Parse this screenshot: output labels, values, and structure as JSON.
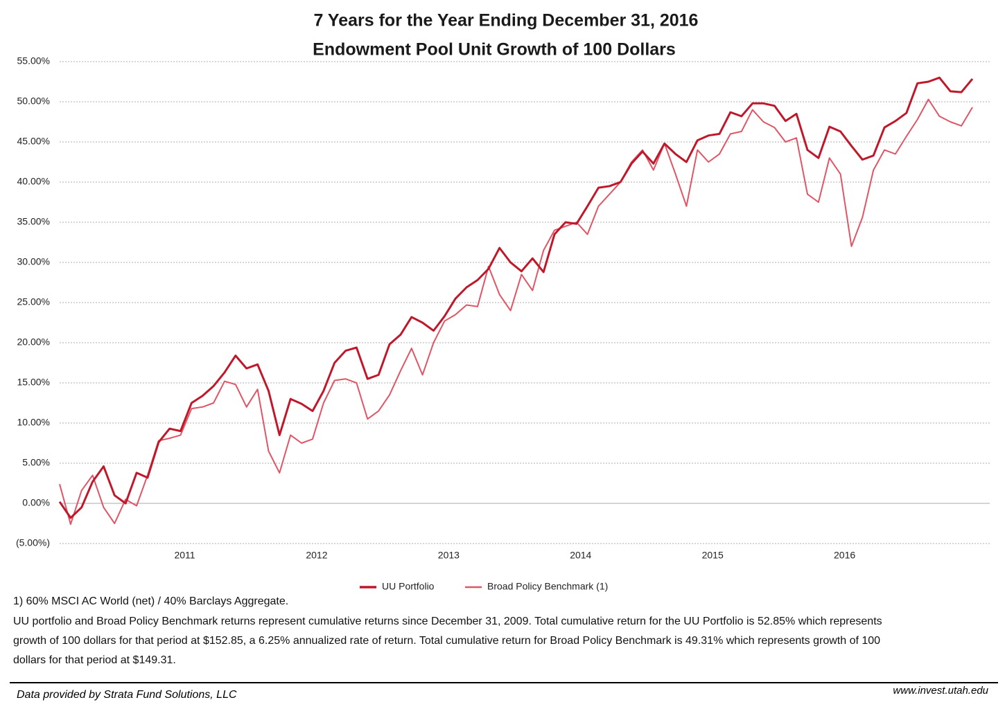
{
  "chart_data": {
    "type": "line",
    "title": "7 Years for the Year Ending December 31, 2016",
    "subtitle": "Endowment Pool Unit Growth of 100 Dollars",
    "categories": [
      null,
      null,
      null,
      null,
      null,
      null,
      null,
      null,
      null,
      null,
      null,
      "2011",
      null,
      null,
      null,
      null,
      null,
      null,
      null,
      null,
      null,
      null,
      null,
      "2012",
      null,
      null,
      null,
      null,
      null,
      null,
      null,
      null,
      null,
      null,
      null,
      "2013",
      null,
      null,
      null,
      null,
      null,
      null,
      null,
      null,
      null,
      null,
      null,
      "2014",
      null,
      null,
      null,
      null,
      null,
      null,
      null,
      null,
      null,
      null,
      null,
      "2015",
      null,
      null,
      null,
      null,
      null,
      null,
      null,
      null,
      null,
      null,
      null,
      "2016",
      null,
      null,
      null,
      null,
      null,
      null,
      null,
      null,
      null,
      null,
      null,
      null
    ],
    "series": [
      {
        "name": "UU Portfolio",
        "color": "#c0182b",
        "values": [
          0.2,
          -1.8,
          -0.5,
          2.7,
          4.6,
          1.0,
          0.0,
          3.8,
          3.2,
          7.6,
          9.3,
          9.0,
          12.5,
          13.4,
          14.6,
          16.3,
          18.4,
          16.8,
          17.3,
          14.0,
          8.5,
          13.0,
          12.4,
          11.5,
          14.0,
          17.5,
          19.0,
          19.4,
          15.5,
          16.0,
          19.8,
          21.0,
          23.2,
          22.5,
          21.5,
          23.3,
          25.5,
          26.9,
          27.8,
          29.2,
          31.8,
          30.0,
          28.9,
          30.5,
          28.8,
          33.5,
          35.0,
          34.8,
          37.0,
          39.3,
          39.5,
          40.0,
          42.3,
          43.8,
          42.3,
          44.8,
          43.5,
          42.5,
          45.2,
          45.8,
          46.0,
          48.7,
          48.2,
          49.8,
          49.8,
          49.5,
          47.6,
          48.5,
          44.0,
          43.0,
          46.9,
          46.3,
          44.5,
          42.8,
          43.3,
          46.8,
          47.6,
          48.6,
          52.3,
          52.5,
          53.0,
          51.3,
          51.2,
          52.85
        ]
      },
      {
        "name": "Broad Policy Benchmark (1)",
        "color": "#e05565",
        "values": [
          2.4,
          -2.6,
          1.6,
          3.5,
          -0.5,
          -2.5,
          0.5,
          -0.3,
          3.5,
          7.8,
          8.1,
          8.5,
          11.8,
          12.0,
          12.5,
          15.2,
          14.8,
          12.0,
          14.2,
          6.5,
          3.8,
          8.5,
          7.5,
          8.0,
          12.5,
          15.3,
          15.5,
          15.0,
          10.5,
          11.5,
          13.5,
          16.5,
          19.3,
          16.0,
          20.0,
          22.7,
          23.5,
          24.7,
          24.5,
          29.5,
          26.0,
          24.0,
          28.5,
          26.5,
          31.5,
          34.0,
          34.5,
          35.0,
          33.5,
          37.0,
          38.5,
          40.0,
          42.5,
          44.0,
          41.5,
          44.8,
          41.0,
          37.0,
          44.0,
          42.5,
          43.5,
          46.0,
          46.3,
          49.0,
          47.5,
          46.8,
          45.0,
          45.5,
          38.5,
          37.5,
          43.0,
          41.0,
          32.0,
          35.6,
          41.5,
          44.0,
          43.5,
          45.7,
          47.8,
          50.3,
          48.2,
          47.5,
          47.0,
          49.31
        ]
      }
    ],
    "ylim": [
      -5,
      55
    ],
    "yticks": [
      {
        "value": -5,
        "label": "(5.00%)"
      },
      {
        "value": 0,
        "label": "0.00%"
      },
      {
        "value": 5,
        "label": "5.00%"
      },
      {
        "value": 10,
        "label": "10.00%"
      },
      {
        "value": 15,
        "label": "15.00%"
      },
      {
        "value": 20,
        "label": "20.00%"
      },
      {
        "value": 25,
        "label": "25.00%"
      },
      {
        "value": 30,
        "label": "30.00%"
      },
      {
        "value": 35,
        "label": "35.00%"
      },
      {
        "value": 40,
        "label": "40.00%"
      },
      {
        "value": 45,
        "label": "45.00%"
      },
      {
        "value": 50,
        "label": "50.00%"
      },
      {
        "value": 55,
        "label": "55.00%"
      }
    ],
    "grid": true,
    "legend": "bottom"
  },
  "notes": [
    "1) 60% MSCI AC World (net) / 40% Barclays Aggregate.",
    "UU portfolio and Broad Policy Benchmark returns represent cumulative returns since December 31, 2009. Total cumulative return for the UU Portfolio is 52.85% which represents",
    "growth of 100 dollars for that period at $152.85, a 6.25% annualized rate of return.  Total cumulative return for Broad Policy Benchmark is 49.31% which represents growth of 100",
    "dollars for that period at $149.31."
  ],
  "footer": {
    "source": "Data provided by Strata Fund Solutions, LLC",
    "url": "www.invest.utah.edu"
  }
}
